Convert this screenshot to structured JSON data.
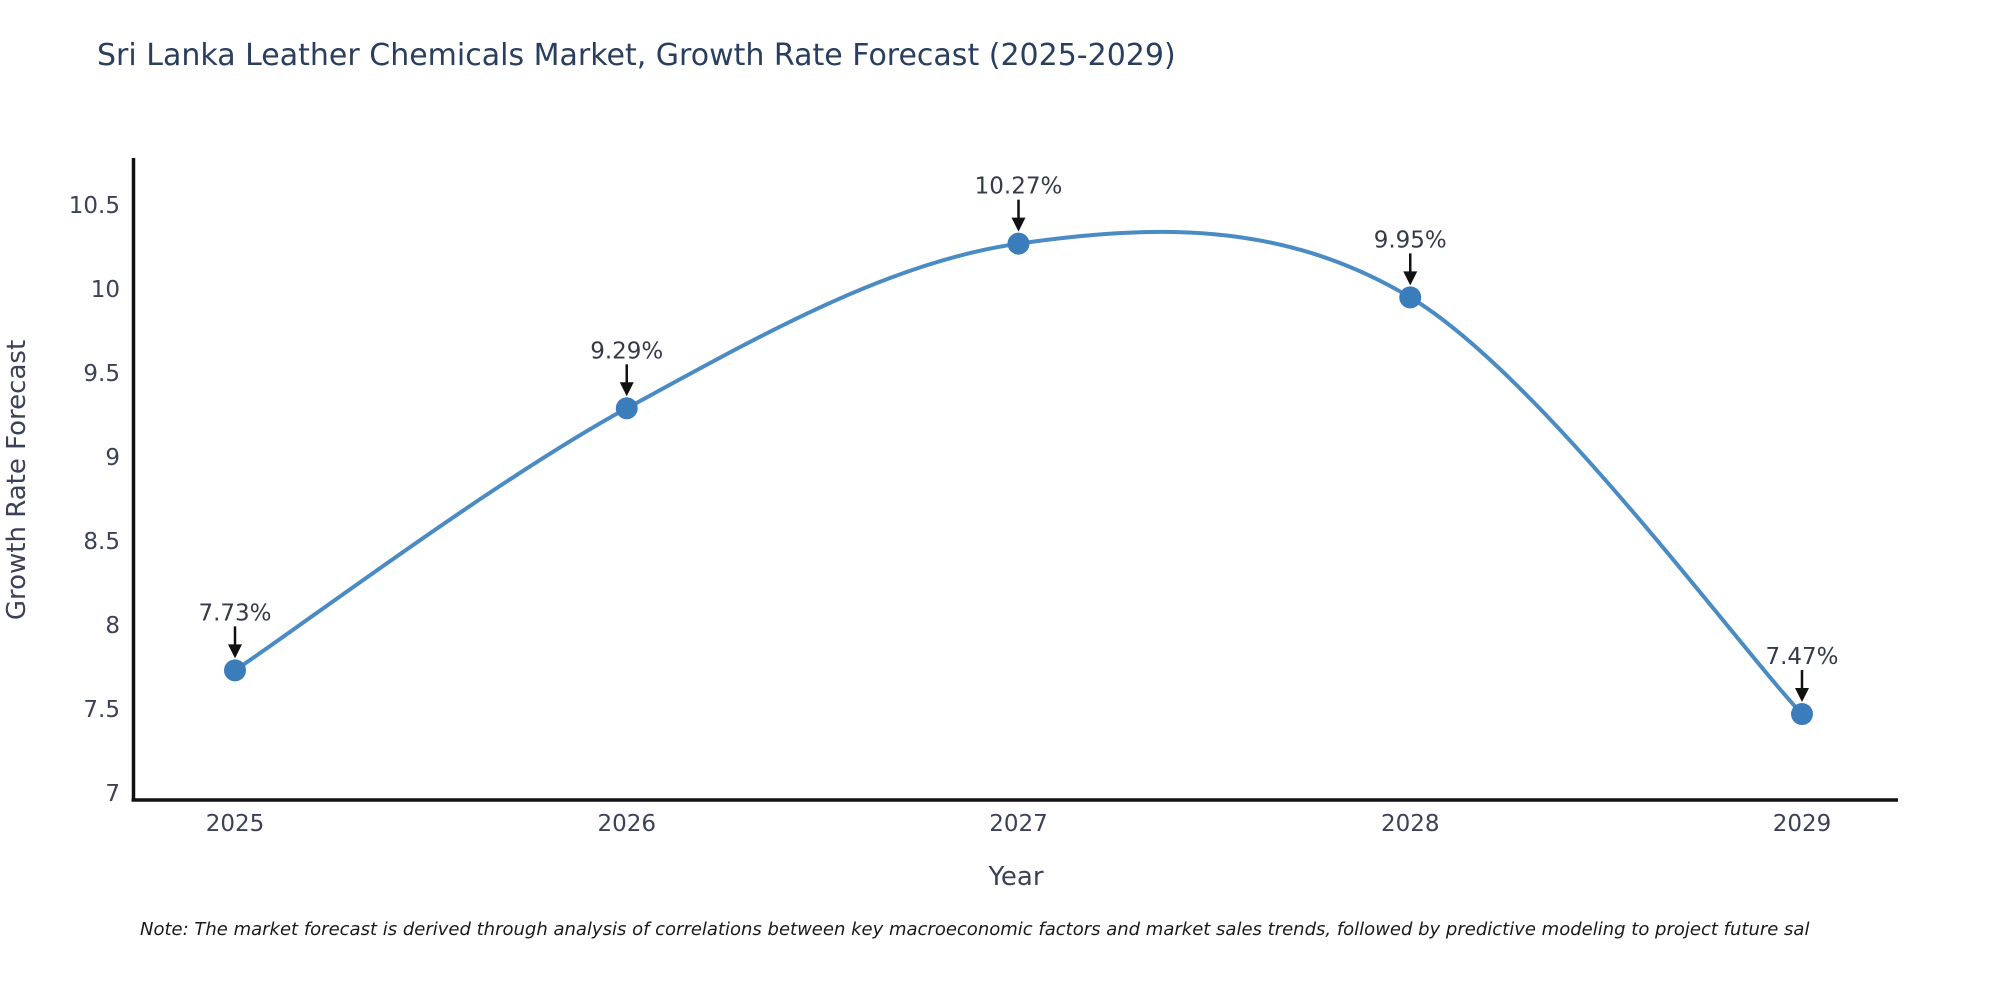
{
  "note": "Note: The market forecast is derived through analysis of correlations between key macroeconomic factors and market sales trends, followed by predictive modeling to project future sal",
  "chart_data": {
    "type": "line",
    "title": "Sri Lanka Leather Chemicals Market, Growth Rate Forecast (2025-2029)",
    "xlabel": "Year",
    "ylabel": "Growth Rate Forecast",
    "categories": [
      "2025",
      "2026",
      "2027",
      "2028",
      "2029"
    ],
    "series": [
      {
        "name": "Growth Rate Forecast",
        "values": [
          7.73,
          9.29,
          10.27,
          9.95,
          7.47
        ]
      }
    ],
    "point_labels": [
      "7.73%",
      "9.29%",
      "10.27%",
      "9.95%",
      "7.47%"
    ],
    "ylim": [
      7,
      10.5
    ],
    "yticks": [
      7,
      7.5,
      8,
      8.5,
      9,
      9.5,
      10,
      10.5
    ],
    "ytick_labels": [
      "7",
      "7.5",
      "8",
      "8.5",
      "9",
      "9.5",
      "10",
      "10.5"
    ],
    "grid": false,
    "legend": "none",
    "line_shape": "spline",
    "colors": {
      "line": "#4a8bc4",
      "marker": "#3b7cba",
      "axis": "#111111",
      "arrow": "#111111",
      "title_text": "#2a3f5f",
      "tick_text": "#3b4257",
      "annotation_text": "#333b49",
      "background": "#ffffff"
    }
  }
}
